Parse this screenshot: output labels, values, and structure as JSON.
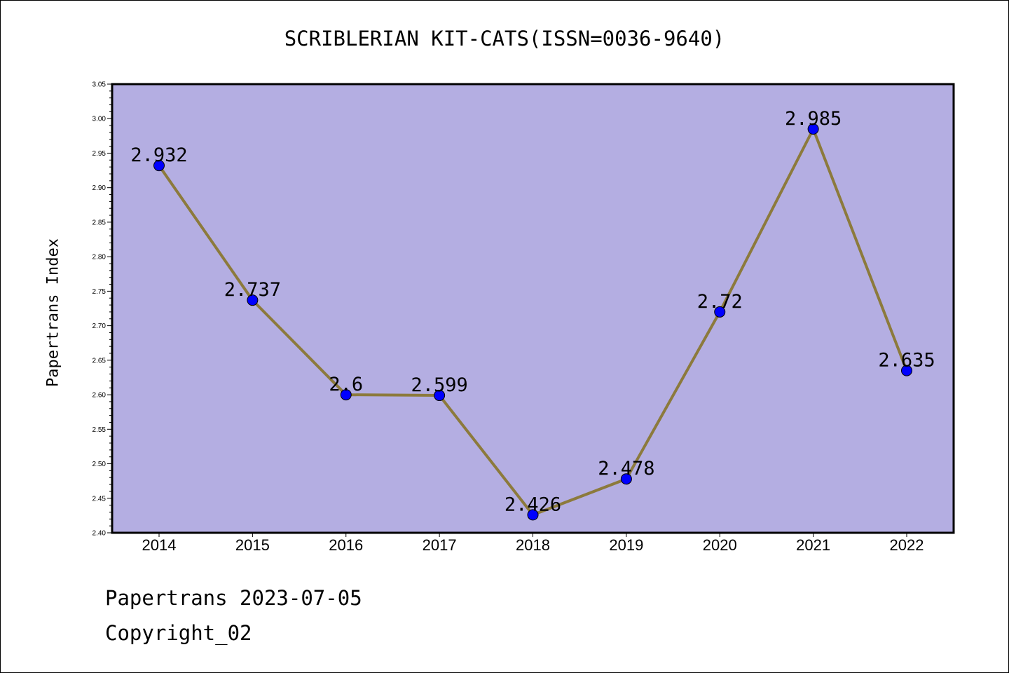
{
  "chart_data": {
    "type": "line",
    "title": "SCRIBLERIAN KIT-CATS(ISSN=0036-9640)",
    "ylabel": "Papertrans Index",
    "xlabel": "",
    "categories": [
      "2014",
      "2015",
      "2016",
      "2017",
      "2018",
      "2019",
      "2020",
      "2021",
      "2022"
    ],
    "values": [
      2.932,
      2.737,
      2.6,
      2.599,
      2.426,
      2.478,
      2.72,
      2.985,
      2.635
    ],
    "data_labels": [
      "2.932",
      "2.737",
      "2.6",
      "2.599",
      "2.426",
      "2.478",
      "2.72",
      "2.985",
      "2.635"
    ],
    "ylim": [
      2.4,
      3.05
    ],
    "yticks": [
      "2.40",
      "2.45",
      "2.50",
      "2.55",
      "2.60",
      "2.65",
      "2.70",
      "2.75",
      "2.80",
      "2.85",
      "2.90",
      "2.95",
      "3.00",
      "3.05"
    ],
    "grid": false,
    "colors": {
      "plot_background": "#b4aee2",
      "line": "#8c7a3c",
      "marker": "#0000ff"
    }
  },
  "footer": {
    "line1": "Papertrans 2023-07-05",
    "line2": "Copyright_02"
  }
}
